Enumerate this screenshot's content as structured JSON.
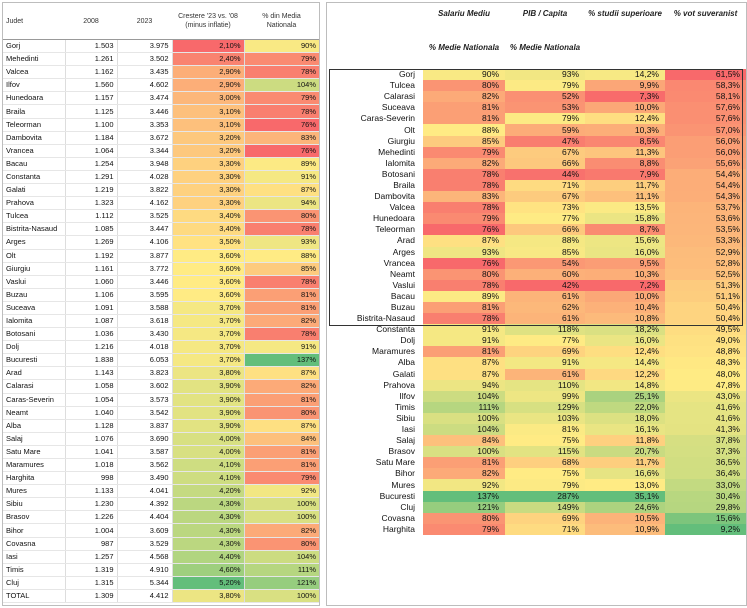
{
  "left": {
    "headers": {
      "judet": "Judet",
      "y2008": "2008",
      "y2023": "2023",
      "growth": "Crestere '23 vs. '08 (minus inflatie)",
      "media": "% din Media Nationala"
    },
    "rows": [
      [
        "Gorj",
        "1.503",
        "3.975",
        "2,10%",
        "90%"
      ],
      [
        "Mehedinti",
        "1.261",
        "3.502",
        "2,40%",
        "79%"
      ],
      [
        "Valcea",
        "1.162",
        "3.435",
        "2,90%",
        "78%"
      ],
      [
        "Ilfov",
        "1.560",
        "4.602",
        "2,90%",
        "104%"
      ],
      [
        "Hunedoara",
        "1.157",
        "3.474",
        "3,00%",
        "79%"
      ],
      [
        "Braila",
        "1.125",
        "3.446",
        "3,10%",
        "78%"
      ],
      [
        "Teleorman",
        "1.100",
        "3.353",
        "3,10%",
        "76%"
      ],
      [
        "Dambovita",
        "1.184",
        "3.672",
        "3,20%",
        "83%"
      ],
      [
        "Vrancea",
        "1.064",
        "3.344",
        "3,20%",
        "76%"
      ],
      [
        "Bacau",
        "1.254",
        "3.948",
        "3,30%",
        "89%"
      ],
      [
        "Constanta",
        "1.291",
        "4.028",
        "3,30%",
        "91%"
      ],
      [
        "Galati",
        "1.219",
        "3.822",
        "3,30%",
        "87%"
      ],
      [
        "Prahova",
        "1.323",
        "4.162",
        "3,30%",
        "94%"
      ],
      [
        "Tulcea",
        "1.112",
        "3.525",
        "3,40%",
        "80%"
      ],
      [
        "Bistrita-Nasaud",
        "1.085",
        "3.447",
        "3,40%",
        "78%"
      ],
      [
        "Arges",
        "1.269",
        "4.106",
        "3,50%",
        "93%"
      ],
      [
        "Olt",
        "1.192",
        "3.877",
        "3,60%",
        "88%"
      ],
      [
        "Giurgiu",
        "1.161",
        "3.772",
        "3,60%",
        "85%"
      ],
      [
        "Vaslui",
        "1.060",
        "3.446",
        "3,60%",
        "78%"
      ],
      [
        "Buzau",
        "1.106",
        "3.595",
        "3,60%",
        "81%"
      ],
      [
        "Suceava",
        "1.091",
        "3.588",
        "3,70%",
        "81%"
      ],
      [
        "Ialomita",
        "1.087",
        "3.618",
        "3,70%",
        "82%"
      ],
      [
        "Botosani",
        "1.036",
        "3.430",
        "3,70%",
        "78%"
      ],
      [
        "Dolj",
        "1.216",
        "4.018",
        "3,70%",
        "91%"
      ],
      [
        "Bucuresti",
        "1.838",
        "6.053",
        "3,70%",
        "137%"
      ],
      [
        "Arad",
        "1.143",
        "3.823",
        "3,80%",
        "87%"
      ],
      [
        "Calarasi",
        "1.058",
        "3.602",
        "3,90%",
        "82%"
      ],
      [
        "Caras-Severin",
        "1.054",
        "3.573",
        "3,90%",
        "81%"
      ],
      [
        "Neamt",
        "1.040",
        "3.542",
        "3,90%",
        "80%"
      ],
      [
        "Alba",
        "1.128",
        "3.837",
        "3,90%",
        "87%"
      ],
      [
        "Salaj",
        "1.076",
        "3.690",
        "4,00%",
        "84%"
      ],
      [
        "Satu Mare",
        "1.041",
        "3.587",
        "4,00%",
        "81%"
      ],
      [
        "Maramures",
        "1.018",
        "3.562",
        "4,10%",
        "81%"
      ],
      [
        "Harghita",
        "998",
        "3.490",
        "4,10%",
        "79%"
      ],
      [
        "Mures",
        "1.133",
        "4.041",
        "4,20%",
        "92%"
      ],
      [
        "Sibiu",
        "1.230",
        "4.392",
        "4,30%",
        "100%"
      ],
      [
        "Brasov",
        "1.226",
        "4.404",
        "4,30%",
        "100%"
      ],
      [
        "Bihor",
        "1.004",
        "3.609",
        "4,30%",
        "82%"
      ],
      [
        "Covasna",
        "987",
        "3.529",
        "4,30%",
        "80%"
      ],
      [
        "Iasi",
        "1.257",
        "4.568",
        "4,40%",
        "104%"
      ],
      [
        "Timis",
        "1.319",
        "4.910",
        "4,60%",
        "111%"
      ],
      [
        "Cluj",
        "1.315",
        "5.344",
        "5,20%",
        "121%"
      ],
      [
        "TOTAL",
        "1.309",
        "4.412",
        "3,80%",
        "100%"
      ]
    ]
  },
  "right": {
    "headers": {
      "salariu": "Salariu Mediu",
      "pib": "PIB / Capita",
      "studii": "% studii superioare",
      "vot": "% vot suveranist",
      "salariu_sub": "% Medie Nationala",
      "pib_sub": "% Medie Nationala"
    },
    "rows": [
      [
        "Gorj",
        "90%",
        "93%",
        "14,2%",
        "61,5%"
      ],
      [
        "Tulcea",
        "80%",
        "79%",
        "9,9%",
        "58,3%"
      ],
      [
        "Calarasi",
        "82%",
        "52%",
        "7,3%",
        "58,1%"
      ],
      [
        "Suceava",
        "81%",
        "53%",
        "10,0%",
        "57,6%"
      ],
      [
        "Caras-Severin",
        "81%",
        "79%",
        "12,4%",
        "57,6%"
      ],
      [
        "Olt",
        "88%",
        "59%",
        "10,3%",
        "57,0%"
      ],
      [
        "Giurgiu",
        "85%",
        "47%",
        "8,5%",
        "56,0%"
      ],
      [
        "Mehedinti",
        "79%",
        "67%",
        "11,3%",
        "56,0%"
      ],
      [
        "Ialomita",
        "82%",
        "66%",
        "8,8%",
        "55,6%"
      ],
      [
        "Botosani",
        "78%",
        "44%",
        "7,9%",
        "54,4%"
      ],
      [
        "Braila",
        "78%",
        "71%",
        "11,7%",
        "54,4%"
      ],
      [
        "Dambovita",
        "83%",
        "67%",
        "11,1%",
        "54,3%"
      ],
      [
        "Valcea",
        "78%",
        "73%",
        "13,5%",
        "53,7%"
      ],
      [
        "Hunedoara",
        "79%",
        "77%",
        "15,8%",
        "53,6%"
      ],
      [
        "Teleorman",
        "76%",
        "66%",
        "8,7%",
        "53,5%"
      ],
      [
        "Arad",
        "87%",
        "88%",
        "15,6%",
        "53,3%"
      ],
      [
        "Arges",
        "93%",
        "85%",
        "16,0%",
        "52,9%"
      ],
      [
        "Vrancea",
        "76%",
        "54%",
        "9,5%",
        "52,8%"
      ],
      [
        "Neamt",
        "80%",
        "60%",
        "10,3%",
        "52,5%"
      ],
      [
        "Vaslui",
        "78%",
        "42%",
        "7,2%",
        "51,3%"
      ],
      [
        "Bacau",
        "89%",
        "61%",
        "10,0%",
        "51,1%"
      ],
      [
        "Buzau",
        "81%",
        "62%",
        "10,4%",
        "50,4%"
      ],
      [
        "Bistrita-Nasaud",
        "78%",
        "61%",
        "10,8%",
        "50,4%"
      ],
      [
        "Constanta",
        "91%",
        "118%",
        "18,2%",
        "49,5%"
      ],
      [
        "Dolj",
        "91%",
        "77%",
        "16,0%",
        "49,0%"
      ],
      [
        "Maramures",
        "81%",
        "69%",
        "12,4%",
        "48,8%"
      ],
      [
        "Alba",
        "87%",
        "91%",
        "14,4%",
        "48,3%"
      ],
      [
        "Galati",
        "87%",
        "61%",
        "12,2%",
        "48,0%"
      ],
      [
        "Prahova",
        "94%",
        "110%",
        "14,8%",
        "47,8%"
      ],
      [
        "Ilfov",
        "104%",
        "99%",
        "25,1%",
        "43,0%"
      ],
      [
        "Timis",
        "111%",
        "129%",
        "22,0%",
        "41,6%"
      ],
      [
        "Sibiu",
        "100%",
        "103%",
        "18,0%",
        "41,6%"
      ],
      [
        "Iasi",
        "104%",
        "81%",
        "16,1%",
        "41,3%"
      ],
      [
        "Salaj",
        "84%",
        "75%",
        "11,8%",
        "37,8%"
      ],
      [
        "Brasov",
        "100%",
        "115%",
        "20,7%",
        "37,3%"
      ],
      [
        "Satu Mare",
        "81%",
        "68%",
        "11,7%",
        "36,5%"
      ],
      [
        "Bihor",
        "82%",
        "75%",
        "16,6%",
        "36,4%"
      ],
      [
        "Mures",
        "92%",
        "79%",
        "13,0%",
        "33,0%"
      ],
      [
        "Bucuresti",
        "137%",
        "287%",
        "35,1%",
        "30,4%"
      ],
      [
        "Cluj",
        "121%",
        "149%",
        "24,6%",
        "29,8%"
      ],
      [
        "Covasna",
        "80%",
        "69%",
        "10,5%",
        "15,6%"
      ],
      [
        "Harghita",
        "79%",
        "71%",
        "10,9%",
        "9,2%"
      ]
    ]
  },
  "colors": {
    "scale_low": "#f8696b",
    "scale_mid": "#ffeb84",
    "scale_high": "#63be7b"
  }
}
